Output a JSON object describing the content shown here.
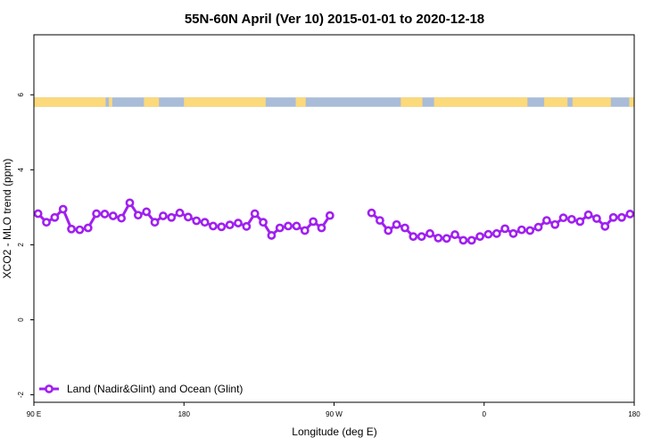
{
  "chart_data": {
    "type": "line",
    "title": "55N-60N April (Ver 10)   2015-01-01 to 2020-12-18",
    "xlabel": "Longitude (deg E)",
    "ylabel": "XCO2 - MLO trend (ppm)",
    "xlim": [
      90,
      450
    ],
    "ylim": [
      -2.2,
      7.6
    ],
    "x_ticks": [
      {
        "value": 90,
        "label": "90 E"
      },
      {
        "value": 180,
        "label": "180"
      },
      {
        "value": 270,
        "label": "90 W"
      },
      {
        "value": 360,
        "label": "0"
      },
      {
        "value": 450,
        "label": "180"
      }
    ],
    "y_ticks": [
      {
        "value": -2,
        "label": "-2"
      },
      {
        "value": 0,
        "label": "0"
      },
      {
        "value": 2,
        "label": "2"
      },
      {
        "value": 4,
        "label": "4"
      },
      {
        "value": 6,
        "label": "6"
      }
    ],
    "land_ocean_band": {
      "y_range": [
        5.68,
        5.93
      ],
      "land_color": "#fcd97a",
      "ocean_color": "#a9bcd8",
      "land_segments": [
        [
          90,
          133
        ],
        [
          135,
          137
        ],
        [
          156,
          165
        ],
        [
          180,
          229
        ],
        [
          247,
          253
        ],
        [
          310,
          323
        ],
        [
          330,
          386
        ],
        [
          396,
          410
        ],
        [
          413,
          436
        ],
        [
          447,
          450
        ]
      ]
    },
    "series": [
      {
        "name": "Land (Nadir&Glint) and Ocean (Glint)",
        "color": "#a020f0",
        "x": [
          92.5,
          97.5,
          102.5,
          107.5,
          112.5,
          117.5,
          122.5,
          127.5,
          132.5,
          137.5,
          142.5,
          147.5,
          152.5,
          157.5,
          162.5,
          167.5,
          172.5,
          177.5,
          182.5,
          187.5,
          192.5,
          197.5,
          202.5,
          207.5,
          212.5,
          217.5,
          222.5,
          227.5,
          232.5,
          237.5,
          242.5,
          247.5,
          252.5,
          257.5,
          262.5,
          267.5,
          272.5,
          null,
          292.5,
          297.5,
          302.5,
          307.5,
          312.5,
          317.5,
          322.5,
          327.5,
          332.5,
          337.5,
          342.5,
          347.5,
          352.5,
          357.5,
          362.5,
          367.5,
          372.5,
          377.5,
          382.5,
          387.5,
          392.5,
          397.5,
          402.5,
          407.5,
          412.5,
          417.5,
          422.5,
          427.5,
          432.5,
          437.5,
          442.5,
          447.5
        ],
        "y": [
          2.83,
          2.6,
          2.73,
          2.95,
          2.42,
          2.4,
          2.45,
          2.83,
          2.82,
          2.77,
          2.71,
          3.12,
          2.79,
          2.88,
          2.6,
          2.77,
          2.73,
          2.85,
          2.74,
          2.64,
          2.6,
          2.5,
          2.48,
          2.53,
          2.58,
          2.49,
          2.83,
          2.6,
          2.25,
          2.45,
          2.5,
          2.5,
          2.38,
          2.62,
          2.45,
          2.78,
          null,
          2.65,
          2.85,
          2.65,
          2.38,
          2.54,
          2.45,
          2.22,
          2.22,
          2.3,
          2.18,
          2.17,
          2.27,
          2.12,
          2.12,
          2.22,
          2.28,
          2.3,
          2.43,
          2.3,
          2.4,
          2.38,
          2.47,
          2.65,
          2.54,
          2.72,
          2.68,
          2.62,
          2.8,
          2.7,
          2.49,
          2.73,
          2.73,
          2.82
        ]
      }
    ],
    "legend": {
      "position": "bottom-left",
      "entries": [
        "Land (Nadir&Glint) and Ocean (Glint)"
      ]
    },
    "grid": false
  }
}
